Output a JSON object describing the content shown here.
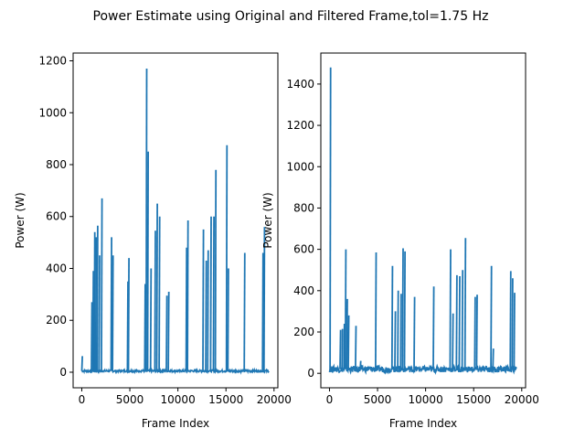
{
  "figure": {
    "suptitle": "Power Estimate using Original and Filtered Frame,tol=1.75 Hz"
  },
  "chart_data": [
    {
      "type": "line",
      "title": "",
      "xlabel": "Frame Index",
      "ylabel": "Power (W)",
      "xlim": [
        -900,
        20400
      ],
      "ylim": [
        -60,
        1230
      ],
      "xticks": [
        0,
        5000,
        10000,
        15000,
        20000
      ],
      "yticks": [
        0,
        200,
        400,
        600,
        800,
        1000,
        1200
      ],
      "color": "#1f77b4",
      "grid": false,
      "series": [
        {
          "baseline": 5,
          "spikes": [
            [
              0,
              62
            ],
            [
              1000,
              270
            ],
            [
              1150,
              390
            ],
            [
              1300,
              540
            ],
            [
              1450,
              520
            ],
            [
              1600,
              565
            ],
            [
              1800,
              450
            ],
            [
              2050,
              670
            ],
            [
              3050,
              520
            ],
            [
              3200,
              450
            ],
            [
              4750,
              350
            ],
            [
              4850,
              440
            ],
            [
              6550,
              340
            ],
            [
              6700,
              1170
            ],
            [
              6850,
              850
            ],
            [
              7150,
              400
            ],
            [
              7600,
              545
            ],
            [
              7800,
              650
            ],
            [
              8050,
              600
            ],
            [
              8800,
              295
            ],
            [
              9000,
              310
            ],
            [
              10850,
              480
            ],
            [
              11000,
              585
            ],
            [
              12600,
              550
            ],
            [
              12900,
              430
            ],
            [
              13100,
              470
            ],
            [
              13400,
              600
            ],
            [
              13700,
              600
            ],
            [
              13900,
              780
            ],
            [
              15050,
              875
            ],
            [
              15200,
              400
            ],
            [
              16900,
              460
            ],
            [
              18800,
              460
            ],
            [
              18950,
              560
            ]
          ]
        }
      ]
    },
    {
      "type": "line",
      "title": "",
      "xlabel": "Frame Index",
      "ylabel": "Power (W)",
      "xlim": [
        -900,
        20400
      ],
      "ylim": [
        -70,
        1550
      ],
      "xticks": [
        0,
        5000,
        10000,
        15000,
        20000
      ],
      "yticks": [
        0,
        200,
        400,
        600,
        800,
        1000,
        1200,
        1400
      ],
      "color": "#1f77b4",
      "grid": false,
      "series": [
        {
          "baseline": 20,
          "spikes": [
            [
              60,
              1480
            ],
            [
              1100,
              210
            ],
            [
              1300,
              215
            ],
            [
              1500,
              240
            ],
            [
              1650,
              600
            ],
            [
              1800,
              360
            ],
            [
              1950,
              280
            ],
            [
              2700,
              230
            ],
            [
              3200,
              60
            ],
            [
              4800,
              585
            ],
            [
              6500,
              520
            ],
            [
              6800,
              300
            ],
            [
              7100,
              400
            ],
            [
              7400,
              385
            ],
            [
              7600,
              605
            ],
            [
              7800,
              590
            ],
            [
              8800,
              370
            ],
            [
              10800,
              420
            ],
            [
              12550,
              600
            ],
            [
              12800,
              290
            ],
            [
              13200,
              475
            ],
            [
              13500,
              470
            ],
            [
              13800,
              500
            ],
            [
              14100,
              655
            ],
            [
              15100,
              370
            ],
            [
              15300,
              380
            ],
            [
              16800,
              520
            ],
            [
              17000,
              120
            ],
            [
              18800,
              495
            ],
            [
              19000,
              460
            ],
            [
              19200,
              390
            ]
          ]
        }
      ]
    }
  ]
}
